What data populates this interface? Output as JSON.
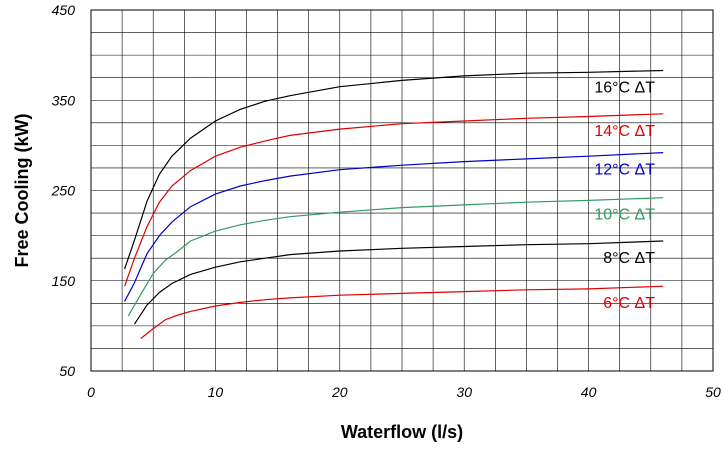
{
  "chart_data": {
    "type": "line",
    "title": "",
    "xlabel": "Waterflow (l/s)",
    "ylabel": "Free Cooling (kW)",
    "xlim": [
      0,
      50
    ],
    "ylim": [
      50,
      450
    ],
    "x_ticks": [
      "0",
      "10",
      "20",
      "30",
      "40",
      "50"
    ],
    "y_ticks": [
      "50",
      "150",
      "250",
      "350",
      "450"
    ],
    "grid": true,
    "legend": "inline labels at right end of each line",
    "series": [
      {
        "name": "16°C ΔT",
        "color": "#000000",
        "x": [
          2.7,
          3.5,
          4.5,
          5.5,
          6.5,
          8,
          10,
          12,
          14,
          16,
          20,
          25,
          30,
          35,
          40,
          46
        ],
        "y": [
          163,
          195,
          238,
          268,
          288,
          308,
          327,
          340,
          349,
          355,
          365,
          372,
          377,
          380,
          381,
          383
        ]
      },
      {
        "name": "14°C ΔT",
        "color": "#e00000",
        "x": [
          2.7,
          3.5,
          4.5,
          5.5,
          6.5,
          8,
          10,
          12,
          14,
          16,
          20,
          25,
          30,
          35,
          40,
          46
        ],
        "y": [
          144,
          175,
          210,
          237,
          255,
          272,
          288,
          298,
          305,
          311,
          318,
          324,
          327,
          330,
          332,
          335
        ]
      },
      {
        "name": "12°C ΔT",
        "color": "#0000cc",
        "x": [
          2.7,
          3.5,
          4.5,
          5.5,
          6.5,
          8,
          10,
          12,
          14,
          16,
          20,
          25,
          30,
          35,
          40,
          46
        ],
        "y": [
          127,
          148,
          180,
          200,
          215,
          232,
          246,
          255,
          261,
          266,
          273,
          278,
          282,
          285,
          288,
          292
        ]
      },
      {
        "name": "10°C ΔT",
        "color": "#339966",
        "x": [
          3,
          4,
          5,
          6,
          7,
          8,
          10,
          12,
          14,
          16,
          20,
          25,
          30,
          35,
          40,
          46
        ],
        "y": [
          111,
          135,
          158,
          173,
          183,
          194,
          205,
          212,
          217,
          221,
          226,
          231,
          234,
          237,
          239,
          242
        ]
      },
      {
        "name": "8°C ΔT",
        "color": "#000000",
        "x": [
          3.5,
          4.5,
          5.5,
          6.5,
          8,
          10,
          12,
          14,
          16,
          20,
          25,
          30,
          35,
          40,
          46
        ],
        "y": [
          102,
          123,
          137,
          147,
          157,
          165,
          171,
          175,
          179,
          183,
          186,
          188,
          190,
          191,
          194
        ]
      },
      {
        "name": "6°C ΔT",
        "color": "#e00000",
        "x": [
          4,
          5,
          6,
          7,
          8,
          10,
          12,
          14,
          16,
          20,
          25,
          30,
          35,
          40,
          46
        ],
        "y": [
          86,
          97,
          107,
          112,
          116,
          122,
          126,
          129,
          131,
          134,
          136,
          138,
          140,
          141,
          144
        ]
      }
    ]
  }
}
